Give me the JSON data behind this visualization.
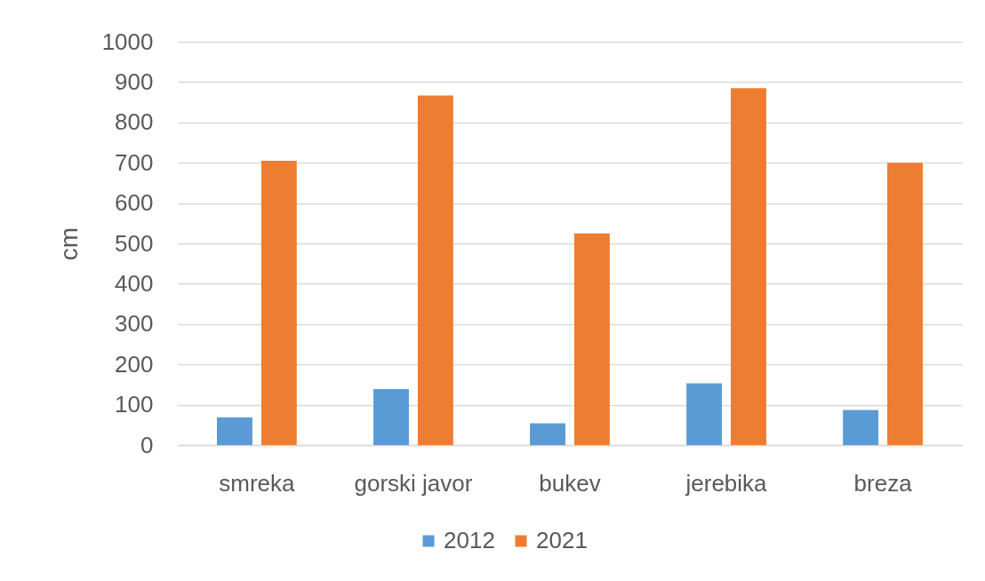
{
  "chart_data": {
    "type": "bar",
    "categories": [
      "smreka",
      "gorski javor",
      "bukev",
      "jerebika",
      "breza"
    ],
    "series": [
      {
        "name": "2012",
        "color": "#5b9bd5",
        "values": [
          69,
          139,
          54,
          153,
          87
        ]
      },
      {
        "name": "2021",
        "color": "#ed7d31",
        "values": [
          705,
          867,
          525,
          885,
          700
        ]
      }
    ],
    "ylabel": "cm",
    "ylim": [
      0,
      1000
    ],
    "yticks": [
      0,
      100,
      200,
      300,
      400,
      500,
      600,
      700,
      800,
      900,
      1000
    ],
    "grid": "y",
    "legend": "bottom"
  }
}
